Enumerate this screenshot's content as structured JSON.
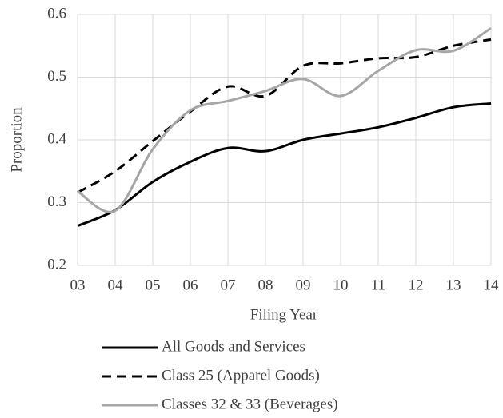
{
  "chart_data": {
    "type": "line",
    "xlabel": "Filing Year",
    "ylabel": "Proportion",
    "categories": [
      "03",
      "04",
      "05",
      "06",
      "07",
      "08",
      "09",
      "10",
      "11",
      "12",
      "13",
      "14"
    ],
    "series": [
      {
        "name": "All Goods and Services",
        "color": "#000000",
        "line_style": "solid",
        "values": [
          0.263,
          0.288,
          0.333,
          0.365,
          0.387,
          0.382,
          0.4,
          0.41,
          0.42,
          0.435,
          0.452,
          0.458
        ]
      },
      {
        "name": "Class 25 (Apparel Goods)",
        "color": "#000000",
        "line_style": "dashed",
        "values": [
          0.316,
          0.35,
          0.398,
          0.445,
          0.485,
          0.47,
          0.518,
          0.522,
          0.53,
          0.532,
          0.55,
          0.56
        ]
      },
      {
        "name": "Classes 32 & 33 (Beverages)",
        "color": "#a6a6a6",
        "line_style": "solid",
        "values": [
          0.318,
          0.287,
          0.385,
          0.447,
          0.462,
          0.478,
          0.497,
          0.47,
          0.51,
          0.543,
          0.542,
          0.578
        ]
      }
    ],
    "ylim": [
      0.2,
      0.6
    ],
    "yticks": [
      0.2,
      0.3,
      0.4,
      0.5,
      0.6
    ],
    "grid": true,
    "legend": "bottom"
  }
}
